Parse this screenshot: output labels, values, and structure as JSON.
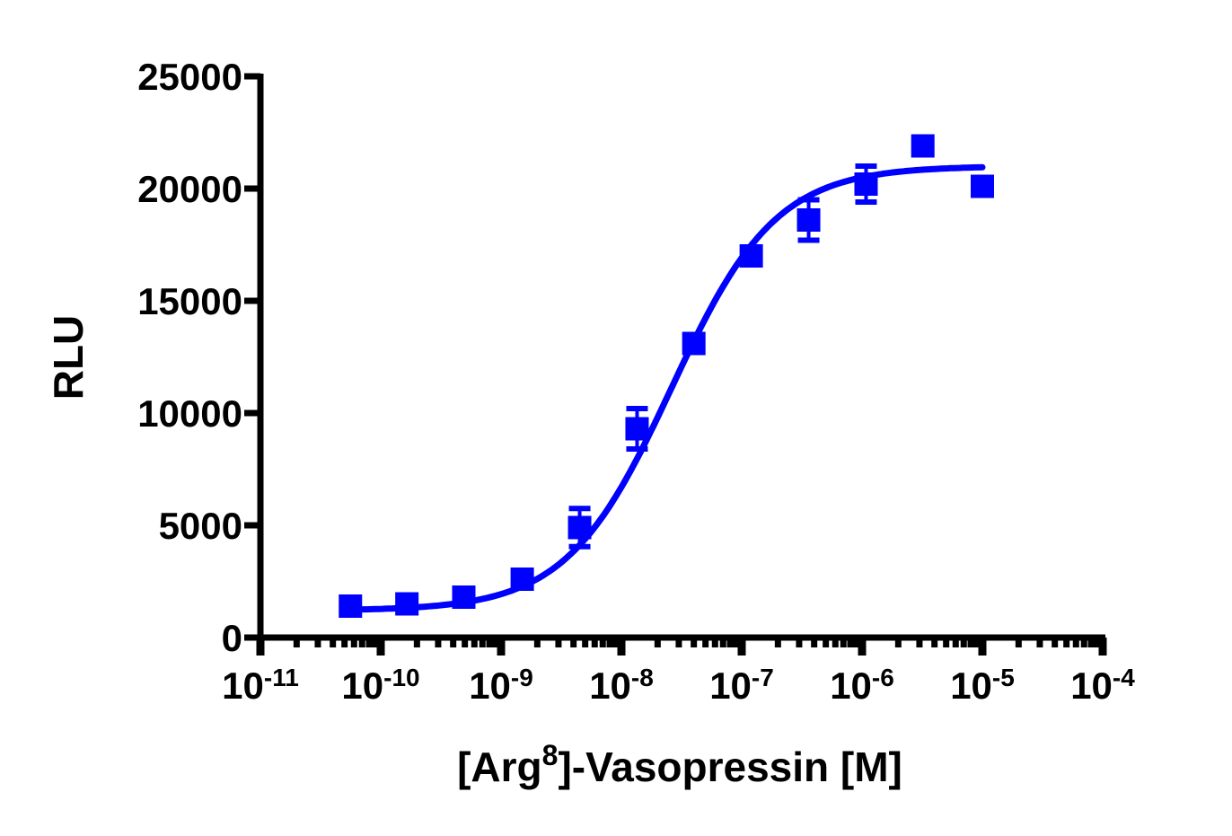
{
  "chart_data": {
    "type": "scatter",
    "title": "",
    "xlabel": {
      "prefix": "[Arg",
      "sup": "8",
      "suffix": "]-Vasopressin [M]"
    },
    "ylabel": "RLU",
    "x_scale": "log",
    "xlim": [
      1e-11,
      0.0001
    ],
    "ylim": [
      0,
      25000
    ],
    "x_ticks": [
      {
        "base": "10",
        "exp": "-11"
      },
      {
        "base": "10",
        "exp": "-10"
      },
      {
        "base": "10",
        "exp": "-9"
      },
      {
        "base": "10",
        "exp": "-8"
      },
      {
        "base": "10",
        "exp": "-7"
      },
      {
        "base": "10",
        "exp": "-6"
      },
      {
        "base": "10",
        "exp": "-5"
      },
      {
        "base": "10",
        "exp": "-4"
      }
    ],
    "y_ticks": [
      "0",
      "5000",
      "10000",
      "15000",
      "20000",
      "25000"
    ],
    "grid": false,
    "color": "#0000ff",
    "points": [
      {
        "x": 5.6e-11,
        "y": 1400,
        "err": 0
      },
      {
        "x": 1.65e-10,
        "y": 1500,
        "err": 0
      },
      {
        "x": 4.9e-10,
        "y": 1800,
        "err": 0
      },
      {
        "x": 1.5e-09,
        "y": 2600,
        "err": 0
      },
      {
        "x": 4.5e-09,
        "y": 4900,
        "err": 850
      },
      {
        "x": 1.35e-08,
        "y": 9300,
        "err": 900
      },
      {
        "x": 4e-08,
        "y": 13100,
        "err": 0
      },
      {
        "x": 1.2e-07,
        "y": 17000,
        "err": 0
      },
      {
        "x": 3.6e-07,
        "y": 18600,
        "err": 900
      },
      {
        "x": 1.08e-06,
        "y": 20200,
        "err": 800
      },
      {
        "x": 3.2e-06,
        "y": 21900,
        "err": 0
      },
      {
        "x": 1e-05,
        "y": 20100,
        "err": 0
      }
    ],
    "fit": {
      "model": "4PL",
      "bottom": 1200,
      "top": 21000,
      "ec50": 2.6e-08,
      "hill": 1.0,
      "x_range": [
        5.6e-11,
        1e-05
      ]
    }
  }
}
